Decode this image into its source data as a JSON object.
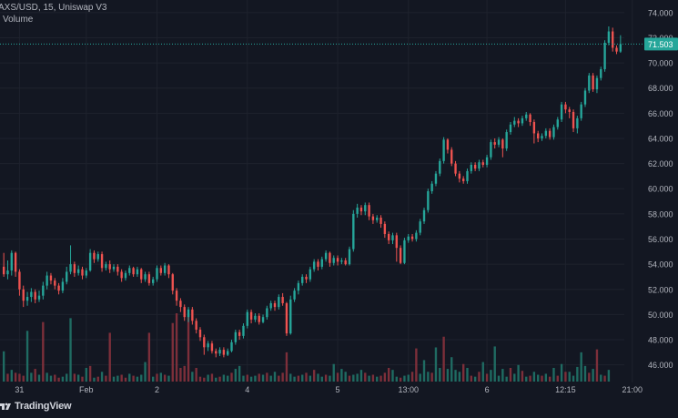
{
  "header": {
    "title": "AXS/USD, 15, Uniswap V3",
    "volume_label": "Volume"
  },
  "brand": {
    "name": "TradingView"
  },
  "colors": {
    "background": "#131722",
    "up": "#26a69a",
    "down": "#ef5350",
    "volume_up": "#1f6b62",
    "volume_down": "#7d2f3a",
    "grid": "#1e222d",
    "axis_text": "#b2b5be",
    "price_badge": "#26a69a",
    "price_line": "#26a69a"
  },
  "chart_data": {
    "type": "candlestick",
    "title": "AXS/USD, 15, Uniswap V3",
    "ylim": [
      44.6,
      75.0
    ],
    "y_ticks": [
      "46.000",
      "48.000",
      "50.000",
      "52.000",
      "54.000",
      "56.000",
      "58.000",
      "60.000",
      "62.000",
      "64.000",
      "66.000",
      "68.000",
      "70.000",
      "72.000",
      "74.000"
    ],
    "x_tick_labels": [
      "31",
      "Feb",
      "2",
      "4",
      "5",
      "13:00",
      "6",
      "12:15",
      "21:00"
    ],
    "x_tick_positions": [
      4,
      21,
      39,
      62,
      85,
      103,
      123,
      143,
      160
    ],
    "current_price": "71.503",
    "current_price_value": 71.503,
    "candles": [
      [
        53.8,
        53.2,
        54.9,
        53.0
      ],
      [
        53.2,
        53.5,
        54.3,
        52.8
      ],
      [
        53.5,
        54.9,
        55.1,
        53.1
      ],
      [
        54.9,
        53.4,
        55.0,
        53.0
      ],
      [
        53.4,
        52.0,
        53.6,
        51.5
      ],
      [
        52.0,
        51.1,
        52.3,
        50.6
      ],
      [
        51.1,
        51.4,
        51.8,
        50.7
      ],
      [
        51.4,
        51.8,
        52.1,
        51.0
      ],
      [
        51.8,
        51.2,
        52.0,
        50.9
      ],
      [
        51.2,
        51.5,
        51.9,
        51.0
      ],
      [
        51.5,
        52.3,
        52.6,
        51.2
      ],
      [
        52.3,
        53.1,
        53.4,
        52.0
      ],
      [
        53.1,
        52.7,
        53.3,
        52.4
      ],
      [
        52.7,
        52.3,
        52.9,
        52.0
      ],
      [
        52.3,
        51.9,
        52.5,
        51.6
      ],
      [
        51.9,
        52.6,
        52.9,
        51.7
      ],
      [
        52.6,
        53.4,
        53.8,
        52.4
      ],
      [
        53.4,
        54.0,
        55.5,
        53.2
      ],
      [
        54.0,
        53.3,
        54.2,
        53.0
      ],
      [
        53.3,
        53.6,
        53.9,
        53.1
      ],
      [
        53.6,
        53.1,
        53.8,
        52.8
      ],
      [
        53.1,
        53.5,
        53.7,
        52.9
      ],
      [
        53.5,
        54.9,
        55.2,
        53.4
      ],
      [
        54.9,
        54.4,
        55.1,
        54.1
      ],
      [
        54.4,
        54.8,
        55.0,
        54.2
      ],
      [
        54.8,
        53.7,
        55.0,
        53.4
      ],
      [
        53.7,
        54.0,
        54.2,
        53.5
      ],
      [
        54.0,
        53.6,
        54.3,
        53.3
      ],
      [
        53.6,
        53.8,
        54.0,
        53.4
      ],
      [
        53.8,
        53.4,
        54.0,
        53.1
      ],
      [
        53.4,
        52.9,
        53.6,
        52.6
      ],
      [
        52.9,
        53.3,
        53.5,
        52.7
      ],
      [
        53.3,
        53.7,
        53.9,
        53.1
      ],
      [
        53.7,
        53.2,
        53.8,
        53.0
      ],
      [
        53.2,
        53.6,
        53.8,
        53.0
      ],
      [
        53.6,
        52.8,
        53.7,
        52.5
      ],
      [
        52.8,
        53.2,
        53.4,
        52.6
      ],
      [
        53.2,
        52.5,
        53.4,
        52.3
      ],
      [
        52.5,
        52.8,
        53.0,
        52.3
      ],
      [
        52.8,
        53.7,
        53.9,
        52.6
      ],
      [
        53.7,
        53.3,
        53.9,
        53.1
      ],
      [
        53.3,
        53.9,
        54.1,
        53.1
      ],
      [
        53.9,
        53.2,
        54.0,
        52.9
      ],
      [
        53.2,
        51.9,
        53.3,
        51.6
      ],
      [
        51.9,
        51.1,
        52.1,
        50.7
      ],
      [
        51.1,
        50.6,
        51.3,
        50.2
      ],
      [
        50.6,
        49.8,
        50.8,
        49.5
      ],
      [
        49.8,
        50.4,
        50.6,
        49.4
      ],
      [
        50.4,
        49.5,
        50.6,
        49.2
      ],
      [
        49.5,
        48.8,
        49.7,
        48.5
      ],
      [
        48.8,
        48.2,
        49.0,
        47.9
      ],
      [
        48.2,
        47.4,
        48.4,
        46.8
      ],
      [
        47.4,
        47.7,
        47.9,
        47.1
      ],
      [
        47.7,
        47.1,
        47.9,
        46.9
      ],
      [
        47.1,
        46.9,
        47.3,
        46.6
      ],
      [
        46.9,
        47.2,
        47.4,
        46.7
      ],
      [
        47.2,
        46.8,
        47.4,
        46.6
      ],
      [
        46.8,
        47.1,
        47.3,
        46.7
      ],
      [
        47.1,
        47.8,
        48.0,
        47.0
      ],
      [
        47.8,
        48.6,
        48.8,
        47.6
      ],
      [
        48.6,
        48.3,
        48.8,
        48.0
      ],
      [
        48.3,
        49.1,
        49.3,
        48.1
      ],
      [
        49.1,
        50.2,
        50.4,
        48.9
      ],
      [
        50.2,
        49.6,
        50.4,
        49.3
      ],
      [
        49.6,
        49.9,
        50.1,
        49.4
      ],
      [
        49.9,
        49.4,
        50.1,
        49.2
      ],
      [
        49.4,
        49.8,
        50.0,
        49.3
      ],
      [
        49.8,
        50.5,
        50.7,
        49.6
      ],
      [
        50.5,
        50.9,
        51.1,
        50.3
      ],
      [
        50.9,
        50.6,
        51.1,
        50.3
      ],
      [
        50.6,
        51.4,
        51.6,
        50.4
      ],
      [
        51.4,
        50.9,
        51.7,
        50.7
      ],
      [
        50.9,
        48.5,
        51.0,
        48.3
      ],
      [
        48.5,
        51.2,
        51.5,
        48.4
      ],
      [
        51.2,
        51.9,
        52.1,
        51.0
      ],
      [
        51.9,
        52.5,
        52.7,
        51.6
      ],
      [
        52.5,
        53.0,
        53.2,
        52.3
      ],
      [
        53.0,
        52.8,
        53.2,
        52.5
      ],
      [
        52.8,
        53.6,
        53.8,
        52.6
      ],
      [
        53.6,
        54.2,
        54.4,
        53.4
      ],
      [
        54.2,
        53.8,
        54.4,
        53.5
      ],
      [
        53.8,
        54.4,
        54.6,
        53.6
      ],
      [
        54.4,
        54.9,
        55.1,
        54.2
      ],
      [
        54.9,
        54.1,
        55.0,
        53.8
      ],
      [
        54.1,
        54.5,
        54.7,
        53.9
      ],
      [
        54.5,
        54.2,
        54.7,
        53.9
      ],
      [
        54.2,
        54.3,
        54.5,
        54.0
      ],
      [
        54.3,
        54.0,
        54.5,
        53.9
      ],
      [
        54.0,
        55.2,
        55.4,
        53.9
      ],
      [
        55.2,
        58.0,
        58.3,
        55.0
      ],
      [
        58.0,
        58.5,
        58.8,
        57.7
      ],
      [
        58.5,
        58.2,
        58.7,
        57.9
      ],
      [
        58.2,
        58.7,
        58.9,
        57.9
      ],
      [
        58.7,
        57.8,
        58.9,
        57.5
      ],
      [
        57.8,
        57.5,
        58.0,
        57.2
      ],
      [
        57.5,
        57.7,
        57.9,
        57.3
      ],
      [
        57.7,
        57.2,
        57.9,
        56.9
      ],
      [
        57.2,
        56.4,
        57.4,
        56.1
      ],
      [
        56.4,
        55.9,
        56.6,
        55.6
      ],
      [
        55.9,
        56.3,
        56.5,
        55.6
      ],
      [
        56.3,
        55.3,
        56.5,
        54.2
      ],
      [
        55.3,
        54.1,
        55.5,
        54.0
      ],
      [
        54.1,
        55.9,
        56.1,
        54.0
      ],
      [
        55.9,
        56.2,
        56.4,
        55.7
      ],
      [
        56.2,
        56.0,
        56.4,
        55.8
      ],
      [
        56.0,
        56.5,
        56.7,
        55.8
      ],
      [
        56.5,
        57.4,
        57.6,
        56.3
      ],
      [
        57.4,
        58.3,
        58.5,
        57.2
      ],
      [
        58.3,
        59.8,
        60.0,
        58.1
      ],
      [
        59.8,
        60.4,
        60.6,
        59.6
      ],
      [
        60.4,
        61.2,
        61.4,
        60.2
      ],
      [
        61.2,
        62.2,
        62.4,
        61.0
      ],
      [
        62.2,
        63.9,
        64.1,
        62.0
      ],
      [
        63.9,
        63.1,
        64.0,
        62.8
      ],
      [
        63.1,
        62.0,
        63.3,
        61.8
      ],
      [
        62.0,
        61.2,
        62.2,
        61.0
      ],
      [
        61.2,
        60.8,
        61.4,
        60.5
      ],
      [
        60.8,
        60.6,
        61.0,
        60.4
      ],
      [
        60.6,
        61.4,
        61.6,
        60.4
      ],
      [
        61.4,
        61.9,
        62.1,
        61.2
      ],
      [
        61.9,
        61.6,
        62.1,
        61.4
      ],
      [
        61.6,
        62.1,
        62.3,
        61.4
      ],
      [
        62.1,
        61.9,
        62.3,
        61.7
      ],
      [
        61.9,
        62.5,
        62.7,
        61.7
      ],
      [
        62.5,
        63.7,
        63.9,
        62.3
      ],
      [
        63.7,
        63.5,
        64.0,
        63.2
      ],
      [
        63.5,
        63.9,
        64.1,
        63.3
      ],
      [
        63.9,
        63.2,
        64.0,
        62.5
      ],
      [
        63.2,
        64.5,
        64.7,
        63.0
      ],
      [
        64.5,
        65.1,
        65.3,
        64.3
      ],
      [
        65.1,
        65.4,
        65.7,
        64.9
      ],
      [
        65.4,
        65.2,
        65.6,
        64.9
      ],
      [
        65.2,
        65.6,
        65.8,
        65.0
      ],
      [
        65.6,
        65.9,
        66.1,
        65.4
      ],
      [
        65.9,
        65.3,
        66.0,
        65.0
      ],
      [
        65.3,
        64.4,
        65.5,
        63.6
      ],
      [
        64.4,
        64.0,
        64.6,
        63.7
      ],
      [
        64.0,
        64.2,
        64.4,
        63.8
      ],
      [
        64.2,
        64.6,
        64.8,
        64.0
      ],
      [
        64.6,
        64.1,
        64.8,
        63.9
      ],
      [
        64.1,
        64.9,
        65.1,
        63.9
      ],
      [
        64.9,
        65.5,
        65.7,
        64.7
      ],
      [
        65.5,
        66.7,
        66.9,
        65.3
      ],
      [
        66.7,
        66.3,
        66.9,
        66.0
      ],
      [
        66.3,
        66.1,
        66.5,
        65.6
      ],
      [
        66.1,
        64.8,
        66.3,
        64.5
      ],
      [
        64.8,
        65.6,
        65.8,
        64.4
      ],
      [
        65.6,
        66.7,
        66.9,
        65.4
      ],
      [
        66.7,
        67.8,
        68.0,
        66.5
      ],
      [
        67.8,
        69.0,
        69.2,
        67.6
      ],
      [
        69.0,
        67.9,
        69.2,
        67.7
      ],
      [
        67.9,
        68.8,
        69.0,
        67.6
      ],
      [
        68.8,
        69.5,
        69.7,
        68.6
      ],
      [
        69.5,
        71.6,
        71.8,
        69.3
      ],
      [
        71.6,
        72.5,
        72.9,
        71.4
      ],
      [
        72.5,
        71.2,
        72.8,
        70.9
      ],
      [
        71.2,
        70.9,
        71.4,
        70.7
      ],
      [
        70.9,
        71.5,
        72.2,
        70.8
      ]
    ],
    "volumes": [
      [
        3.1,
        1
      ],
      [
        0.8,
        0
      ],
      [
        1.2,
        1
      ],
      [
        0.9,
        0
      ],
      [
        0.8,
        0
      ],
      [
        0.6,
        0
      ],
      [
        5.2,
        1
      ],
      [
        0.9,
        1
      ],
      [
        1.3,
        0
      ],
      [
        0.7,
        1
      ],
      [
        6.1,
        0
      ],
      [
        0.9,
        1
      ],
      [
        0.6,
        1
      ],
      [
        0.7,
        0
      ],
      [
        0.4,
        0
      ],
      [
        0.5,
        1
      ],
      [
        0.8,
        1
      ],
      [
        6.5,
        1
      ],
      [
        0.8,
        0
      ],
      [
        0.7,
        1
      ],
      [
        0.5,
        0
      ],
      [
        1.4,
        1
      ],
      [
        1.6,
        0
      ],
      [
        0.4,
        1
      ],
      [
        0.5,
        0
      ],
      [
        1.0,
        1
      ],
      [
        0.6,
        0
      ],
      [
        5.0,
        0
      ],
      [
        0.5,
        1
      ],
      [
        0.6,
        1
      ],
      [
        0.7,
        0
      ],
      [
        0.4,
        0
      ],
      [
        0.8,
        1
      ],
      [
        0.6,
        0
      ],
      [
        0.5,
        1
      ],
      [
        0.7,
        1
      ],
      [
        2.0,
        1
      ],
      [
        5.0,
        0
      ],
      [
        0.5,
        1
      ],
      [
        0.8,
        0
      ],
      [
        0.9,
        1
      ],
      [
        0.7,
        0
      ],
      [
        0.6,
        1
      ],
      [
        6.0,
        0
      ],
      [
        7.0,
        0
      ],
      [
        1.4,
        0
      ],
      [
        1.6,
        0
      ],
      [
        7.0,
        0
      ],
      [
        1.0,
        1
      ],
      [
        1.4,
        0
      ],
      [
        0.5,
        0
      ],
      [
        0.4,
        0
      ],
      [
        0.7,
        1
      ],
      [
        0.8,
        0
      ],
      [
        0.4,
        1
      ],
      [
        0.5,
        0
      ],
      [
        0.7,
        1
      ],
      [
        0.6,
        1
      ],
      [
        0.9,
        0
      ],
      [
        1.3,
        1
      ],
      [
        1.6,
        1
      ],
      [
        0.6,
        1
      ],
      [
        0.7,
        0
      ],
      [
        0.5,
        1
      ],
      [
        0.6,
        1
      ],
      [
        0.8,
        0
      ],
      [
        0.7,
        1
      ],
      [
        0.9,
        0
      ],
      [
        0.6,
        1
      ],
      [
        1.0,
        1
      ],
      [
        0.6,
        0
      ],
      [
        0.9,
        0
      ],
      [
        3.0,
        0
      ],
      [
        0.8,
        1
      ],
      [
        0.5,
        1
      ],
      [
        0.6,
        0
      ],
      [
        0.7,
        1
      ],
      [
        0.9,
        0
      ],
      [
        0.6,
        1
      ],
      [
        1.2,
        0
      ],
      [
        0.8,
        1
      ],
      [
        0.5,
        1
      ],
      [
        0.7,
        0
      ],
      [
        0.6,
        1
      ],
      [
        1.8,
        1
      ],
      [
        0.9,
        0
      ],
      [
        1.3,
        1
      ],
      [
        1.0,
        1
      ],
      [
        0.6,
        0
      ],
      [
        0.7,
        1
      ],
      [
        0.8,
        1
      ],
      [
        1.2,
        1
      ],
      [
        0.9,
        0
      ],
      [
        0.6,
        1
      ],
      [
        0.7,
        0
      ],
      [
        0.5,
        1
      ],
      [
        0.6,
        0
      ],
      [
        0.9,
        0
      ],
      [
        1.4,
        0
      ],
      [
        1.2,
        1
      ],
      [
        0.5,
        1
      ],
      [
        0.4,
        0
      ],
      [
        0.6,
        1
      ],
      [
        0.7,
        1
      ],
      [
        1.0,
        0
      ],
      [
        3.4,
        0
      ],
      [
        0.8,
        1
      ],
      [
        2.2,
        1
      ],
      [
        1.0,
        1
      ],
      [
        0.9,
        0
      ],
      [
        3.5,
        1
      ],
      [
        1.4,
        1
      ],
      [
        4.6,
        0
      ],
      [
        1.3,
        1
      ],
      [
        2.5,
        1
      ],
      [
        1.2,
        1
      ],
      [
        1.0,
        1
      ],
      [
        1.8,
        0
      ],
      [
        1.4,
        1
      ],
      [
        0.6,
        0
      ],
      [
        0.5,
        1
      ],
      [
        1.0,
        0
      ],
      [
        2.0,
        1
      ],
      [
        0.8,
        0
      ],
      [
        1.2,
        1
      ],
      [
        3.6,
        1
      ],
      [
        0.6,
        1
      ],
      [
        1.3,
        1
      ],
      [
        0.5,
        1
      ],
      [
        1.4,
        0
      ],
      [
        0.8,
        1
      ],
      [
        1.7,
        1
      ],
      [
        1.1,
        0
      ],
      [
        0.5,
        1
      ],
      [
        0.6,
        0
      ],
      [
        1.0,
        1
      ],
      [
        0.7,
        1
      ],
      [
        0.6,
        0
      ],
      [
        0.8,
        1
      ],
      [
        0.5,
        0
      ],
      [
        1.4,
        1
      ],
      [
        0.6,
        0
      ],
      [
        1.8,
        1
      ],
      [
        1.0,
        0
      ],
      [
        1.0,
        1
      ],
      [
        0.6,
        1
      ],
      [
        1.5,
        1
      ],
      [
        3.0,
        1
      ],
      [
        1.6,
        1
      ],
      [
        0.9,
        0
      ],
      [
        1.3,
        1
      ],
      [
        3.3,
        0
      ],
      [
        0.7,
        1
      ],
      [
        0.6,
        0
      ],
      [
        1.2,
        1
      ]
    ],
    "volume_max": 7.0
  }
}
